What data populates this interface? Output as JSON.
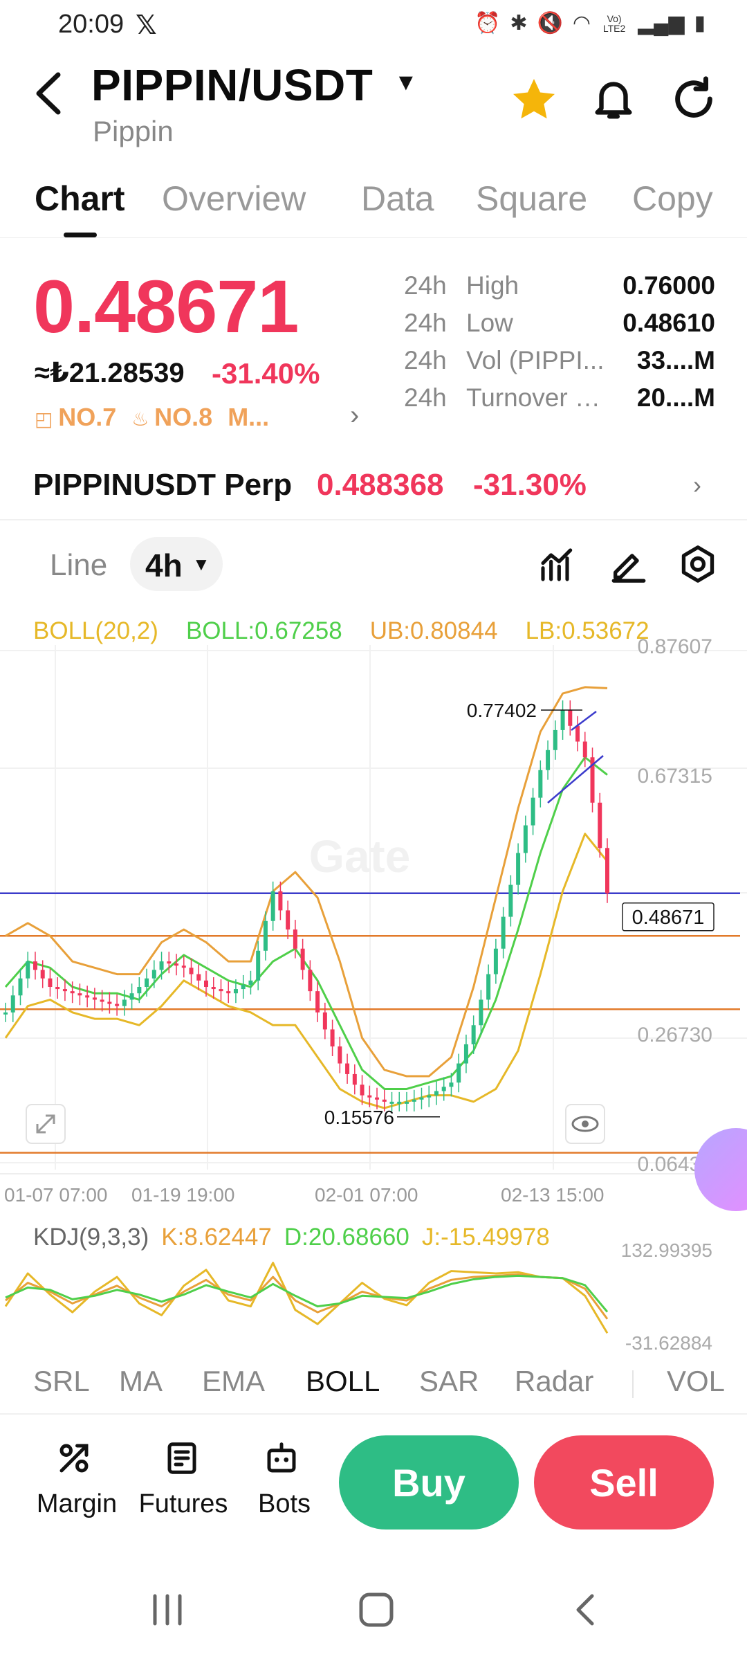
{
  "status_bar": {
    "time": "20:09",
    "x_logo": "𝕏",
    "icons": [
      "alarm-icon",
      "bluetooth-icon",
      "mute-icon",
      "wifi-icon",
      "volte-icon",
      "signal-icon",
      "battery-icon"
    ],
    "volte_text": "Vo) LTE2"
  },
  "header": {
    "title": "PIPPIN/USDT",
    "subtitle": "Pippin",
    "favorite": true
  },
  "tabs": [
    "Chart",
    "Overview",
    "Data",
    "Square",
    "Copy"
  ],
  "active_tab": "Chart",
  "ticker": {
    "price": "0.48671",
    "fiat": "≈₺21.28539",
    "change": "-31.40%",
    "ranks": [
      "NO.7",
      "NO.8",
      "M..."
    ]
  },
  "stats": [
    {
      "prefix": "24h",
      "label": "High",
      "value": "0.76000"
    },
    {
      "prefix": "24h",
      "label": "Low",
      "value": "0.48610"
    },
    {
      "prefix": "24h",
      "label": "Vol (PIPPI...",
      "value": "33....M"
    },
    {
      "prefix": "24h",
      "label": "Turnover (...",
      "value": "20....M"
    }
  ],
  "perp": {
    "name": "PIPPINUSDT Perp",
    "price": "0.488368",
    "change": "-31.30%"
  },
  "toolbar": {
    "line_label": "Line",
    "interval": "4h"
  },
  "boll_legend": {
    "name": "BOLL(20,2)",
    "boll": "BOLL:0.67258",
    "ub": "UB:0.80844",
    "lb": "LB:0.53672"
  },
  "price_axis": [
    "0.87607",
    "0.67315",
    "0.26730",
    "0.06437"
  ],
  "current_price_tag": "0.48671",
  "annotations": {
    "high": "0.77402",
    "low": "0.15576"
  },
  "time_axis": [
    "01-07 07:00",
    "01-19 19:00",
    "02-01 07:00",
    "02-13 15:00"
  ],
  "watermark": "Gate",
  "kdj_legend": {
    "name": "KDJ(9,3,3)",
    "k": "K:8.62447",
    "d": "D:20.68660",
    "j": "J:-15.49978"
  },
  "kdj_axis": [
    "132.99395",
    "-31.62884"
  ],
  "indicator_tabs": [
    "SRL",
    "MA",
    "EMA",
    "BOLL",
    "SAR",
    "Radar",
    "VOL"
  ],
  "active_indicator": "BOLL",
  "bottom_bar": {
    "margin": "Margin",
    "futures": "Futures",
    "bots": "Bots",
    "buy": "Buy",
    "sell": "Sell"
  },
  "colors": {
    "red": "#f0365b",
    "green": "#2ebd85",
    "boll_mid": "#4fcf4a",
    "boll_band": "#e8a03a",
    "lb_band": "#e6b828",
    "blue_line": "#3b3bcc",
    "orange_line": "#e27a2a"
  },
  "chart_data": {
    "type": "line",
    "ylim": [
      0.06437,
      0.87607
    ],
    "grid": true,
    "current_price": 0.48671,
    "horizontal_lines": [
      0.48671,
      0.42,
      0.305,
      0.08
    ],
    "x_ticks": [
      "01-07 07:00",
      "01-19 19:00",
      "02-01 07:00",
      "02-13 15:00"
    ],
    "series": [
      {
        "name": "BOLL:0.67258",
        "values": [
          0.34,
          0.38,
          0.37,
          0.34,
          0.33,
          0.33,
          0.32,
          0.36,
          0.39,
          0.37,
          0.35,
          0.34,
          0.38,
          0.4,
          0.35,
          0.28,
          0.21,
          0.18,
          0.18,
          0.19,
          0.2,
          0.24,
          0.32,
          0.43,
          0.55,
          0.65,
          0.7,
          0.67258
        ]
      },
      {
        "name": "UB:0.80844",
        "values": [
          0.42,
          0.44,
          0.42,
          0.38,
          0.37,
          0.36,
          0.36,
          0.41,
          0.43,
          0.41,
          0.38,
          0.38,
          0.49,
          0.52,
          0.48,
          0.38,
          0.26,
          0.21,
          0.2,
          0.2,
          0.23,
          0.34,
          0.48,
          0.62,
          0.74,
          0.8,
          0.81,
          0.80844
        ]
      },
      {
        "name": "LB:0.53672",
        "values": [
          0.26,
          0.31,
          0.32,
          0.3,
          0.29,
          0.29,
          0.28,
          0.31,
          0.35,
          0.33,
          0.31,
          0.3,
          0.28,
          0.28,
          0.23,
          0.18,
          0.16,
          0.15,
          0.16,
          0.17,
          0.17,
          0.16,
          0.18,
          0.24,
          0.36,
          0.49,
          0.58,
          0.53672
        ]
      }
    ],
    "price_path": [
      0.3,
      0.38,
      0.34,
      0.33,
      0.32,
      0.31,
      0.34,
      0.38,
      0.37,
      0.34,
      0.33,
      0.35,
      0.49,
      0.4,
      0.3,
      0.22,
      0.17,
      0.16,
      0.16,
      0.17,
      0.19,
      0.28,
      0.4,
      0.55,
      0.68,
      0.77402,
      0.7,
      0.48671
    ],
    "kdj": {
      "ylim": [
        -31.62884,
        132.99395
      ],
      "K": [
        40,
        70,
        55,
        35,
        50,
        65,
        45,
        30,
        55,
        75,
        50,
        40,
        80,
        40,
        20,
        35,
        55,
        45,
        40,
        60,
        75,
        80,
        82,
        84,
        80,
        78,
        60,
        8.62447
      ],
      "D": [
        45,
        62,
        58,
        42,
        48,
        58,
        50,
        38,
        50,
        66,
        55,
        45,
        68,
        48,
        30,
        35,
        48,
        46,
        44,
        55,
        68,
        76,
        80,
        82,
        80,
        78,
        66,
        20.6866
      ],
      "J": [
        30,
        86,
        50,
        20,
        55,
        80,
        35,
        15,
        65,
        92,
        40,
        30,
        104,
        24,
        0,
        35,
        70,
        43,
        32,
        70,
        90,
        88,
        86,
        88,
        80,
        78,
        48,
        -15.49978
      ]
    }
  }
}
